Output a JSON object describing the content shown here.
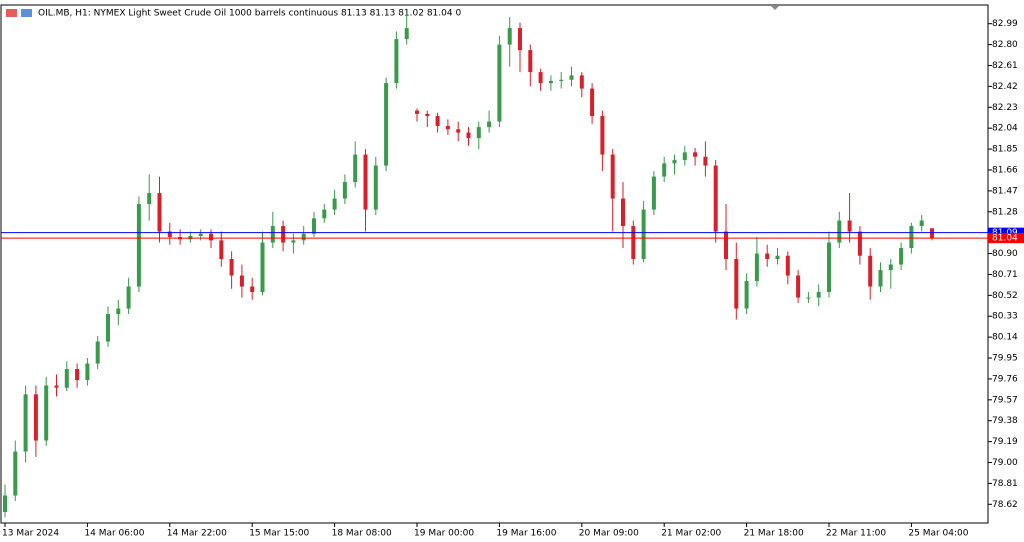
{
  "chart_data": {
    "type": "candlestick",
    "title": "OIL.MB, H1:  NYMEX Light Sweet Crude Oil 1000 barrels continuous  81.13 81.13 81.02 81.04  0",
    "up_color": "#3a9a4c",
    "down_color": "#d81f2a",
    "ylim": [
      78.45,
      83.16
    ],
    "yticks": [
      82.99,
      {
        "value": 82.8,
        "label": "82.80"
      },
      82.61,
      82.42,
      82.23,
      82.04,
      81.85,
      81.66,
      81.47,
      81.28,
      {
        "value": 80.9,
        "label": "80.90"
      },
      80.71,
      80.52,
      80.33,
      80.14,
      79.95,
      79.76,
      79.57,
      79.38,
      79.19,
      {
        "value": 79,
        "label": "79.00"
      },
      78.81,
      78.62
    ],
    "price_lines": [
      {
        "value": 81.09,
        "color": "#0000ff"
      },
      {
        "value": 81.04,
        "color": "#ff0000"
      }
    ],
    "categories": [
      "13 Mar 2024",
      null,
      null,
      null,
      null,
      null,
      null,
      null,
      "14 Mar 06:00",
      null,
      null,
      null,
      null,
      null,
      null,
      null,
      "14 Mar 22:00",
      null,
      null,
      null,
      null,
      null,
      null,
      null,
      "15 Mar 15:00",
      null,
      null,
      null,
      null,
      null,
      null,
      null,
      "18 Mar 08:00",
      null,
      null,
      null,
      null,
      null,
      null,
      null,
      "19 Mar 00:00",
      null,
      null,
      null,
      null,
      null,
      null,
      null,
      "19 Mar 16:00",
      null,
      null,
      null,
      null,
      null,
      null,
      null,
      "20 Mar 09:00",
      null,
      null,
      null,
      null,
      null,
      null,
      null,
      "21 Mar 02:00",
      null,
      null,
      null,
      null,
      null,
      null,
      null,
      "21 Mar 18:00",
      null,
      null,
      null,
      null,
      null,
      null,
      null,
      "22 Mar 11:00",
      null,
      null,
      null,
      null,
      null,
      null,
      null,
      "25 Mar 04:00",
      null,
      null
    ],
    "candles": [
      [
        78.55,
        78.8,
        78.5,
        78.7
      ],
      [
        78.7,
        79.2,
        78.65,
        79.1
      ],
      [
        79.1,
        79.7,
        79.0,
        79.62
      ],
      [
        79.62,
        79.7,
        79.05,
        79.2
      ],
      [
        79.2,
        79.78,
        79.15,
        79.7
      ],
      [
        79.7,
        79.8,
        79.6,
        79.68
      ],
      [
        79.68,
        79.92,
        79.65,
        79.85
      ],
      [
        79.85,
        79.9,
        79.68,
        79.75
      ],
      [
        79.75,
        79.95,
        79.7,
        79.9
      ],
      [
        79.9,
        80.15,
        79.85,
        80.1
      ],
      [
        80.1,
        80.42,
        80.05,
        80.35
      ],
      [
        80.35,
        80.48,
        80.25,
        80.4
      ],
      [
        80.4,
        80.68,
        80.35,
        80.6
      ],
      [
        80.6,
        81.42,
        80.55,
        81.35
      ],
      [
        81.35,
        81.62,
        81.2,
        81.45
      ],
      [
        81.45,
        81.6,
        81.0,
        81.1
      ],
      [
        81.1,
        81.18,
        80.98,
        81.05
      ],
      [
        81.05,
        81.12,
        80.98,
        81.03
      ],
      [
        81.03,
        81.1,
        81.0,
        81.06
      ],
      [
        81.06,
        81.12,
        81.02,
        81.08
      ],
      [
        81.08,
        81.12,
        80.95,
        81.02
      ],
      [
        81.02,
        81.1,
        80.78,
        80.85
      ],
      [
        80.85,
        80.92,
        80.58,
        80.7
      ],
      [
        80.7,
        80.8,
        80.5,
        80.6
      ],
      [
        80.6,
        80.68,
        80.48,
        80.55
      ],
      [
        80.55,
        81.1,
        80.52,
        81.0
      ],
      [
        81.0,
        81.28,
        80.95,
        81.15
      ],
      [
        81.15,
        81.2,
        80.92,
        81.0
      ],
      [
        81.0,
        81.08,
        80.9,
        81.02
      ],
      [
        81.02,
        81.15,
        80.98,
        81.08
      ],
      [
        81.08,
        81.28,
        81.05,
        81.22
      ],
      [
        81.22,
        81.35,
        81.18,
        81.3
      ],
      [
        81.3,
        81.48,
        81.25,
        81.4
      ],
      [
        81.4,
        81.62,
        81.35,
        81.55
      ],
      [
        81.55,
        81.92,
        81.5,
        81.8
      ],
      [
        81.8,
        81.85,
        81.1,
        81.3
      ],
      [
        81.3,
        81.78,
        81.25,
        81.7
      ],
      [
        81.7,
        82.5,
        81.65,
        82.45
      ],
      [
        82.45,
        82.92,
        82.4,
        82.85
      ],
      [
        82.85,
        83.08,
        82.8,
        82.95
      ],
      [
        82.2,
        82.22,
        82.1,
        82.17
      ],
      [
        82.17,
        82.2,
        82.05,
        82.15
      ],
      [
        82.15,
        82.18,
        82.0,
        82.06
      ],
      [
        82.06,
        82.12,
        81.98,
        82.03
      ],
      [
        82.03,
        82.1,
        81.92,
        82.0
      ],
      [
        82.0,
        82.05,
        81.88,
        81.95
      ],
      [
        81.95,
        82.1,
        81.85,
        82.05
      ],
      [
        82.05,
        82.2,
        82.0,
        82.1
      ],
      [
        82.1,
        82.88,
        82.05,
        82.8
      ],
      [
        82.8,
        83.05,
        82.6,
        82.95
      ],
      [
        82.95,
        83.0,
        82.55,
        82.75
      ],
      [
        82.75,
        82.8,
        82.42,
        82.55
      ],
      [
        82.55,
        82.58,
        82.38,
        82.45
      ],
      [
        82.45,
        82.52,
        82.38,
        82.47
      ],
      [
        82.47,
        82.55,
        82.4,
        82.48
      ],
      [
        82.48,
        82.6,
        82.42,
        82.52
      ],
      [
        82.52,
        82.55,
        82.32,
        82.4
      ],
      [
        82.4,
        82.45,
        82.08,
        82.15
      ],
      [
        82.15,
        82.2,
        81.65,
        81.8
      ],
      [
        81.8,
        81.85,
        81.1,
        81.4
      ],
      [
        81.4,
        81.55,
        80.95,
        81.15
      ],
      [
        81.15,
        81.2,
        80.8,
        80.85
      ],
      [
        80.85,
        81.38,
        80.82,
        81.3
      ],
      [
        81.3,
        81.65,
        81.25,
        81.6
      ],
      [
        81.6,
        81.78,
        81.55,
        81.72
      ],
      [
        81.72,
        81.8,
        81.62,
        81.75
      ],
      [
        81.75,
        81.88,
        81.7,
        81.82
      ],
      [
        81.82,
        81.86,
        81.7,
        81.78
      ],
      [
        81.78,
        81.92,
        81.6,
        81.7
      ],
      [
        81.7,
        81.75,
        81.0,
        81.1
      ],
      [
        81.1,
        81.35,
        80.75,
        80.85
      ],
      [
        80.85,
        81.0,
        80.3,
        80.4
      ],
      [
        80.4,
        80.72,
        80.35,
        80.65
      ],
      [
        80.65,
        81.05,
        80.6,
        80.9
      ],
      [
        80.9,
        80.98,
        80.78,
        80.85
      ],
      [
        80.85,
        80.95,
        80.8,
        80.88
      ],
      [
        80.88,
        80.92,
        80.62,
        80.7
      ],
      [
        80.7,
        80.75,
        80.45,
        80.5
      ],
      [
        80.5,
        80.55,
        80.45,
        80.5
      ],
      [
        80.5,
        80.62,
        80.42,
        80.55
      ],
      [
        80.55,
        81.1,
        80.5,
        81.0
      ],
      [
        81.0,
        81.28,
        80.95,
        81.2
      ],
      [
        81.2,
        81.45,
        81.0,
        81.1
      ],
      [
        81.1,
        81.15,
        80.8,
        80.88
      ],
      [
        80.88,
        80.95,
        80.48,
        80.6
      ],
      [
        80.6,
        80.82,
        80.55,
        80.75
      ],
      [
        80.75,
        80.85,
        80.58,
        80.8
      ],
      [
        80.8,
        81.0,
        80.75,
        80.95
      ],
      [
        80.95,
        81.18,
        80.9,
        81.15
      ],
      [
        81.15,
        81.25,
        81.1,
        81.2
      ],
      [
        81.13,
        81.13,
        81.02,
        81.04
      ]
    ]
  }
}
